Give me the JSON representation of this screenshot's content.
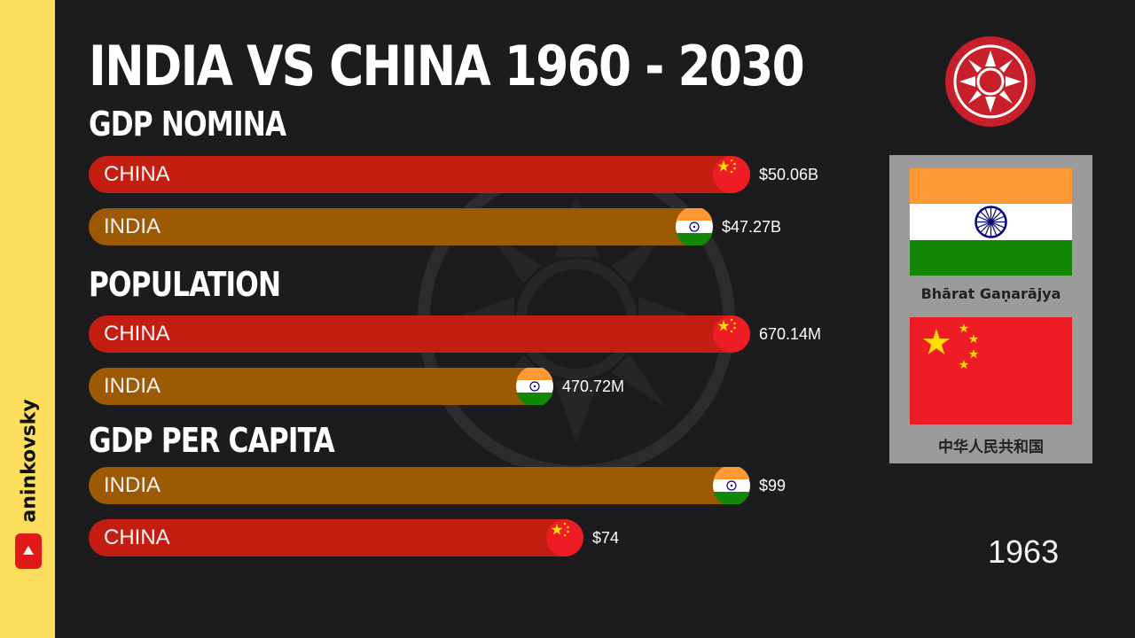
{
  "channel": {
    "name": "aninkovsky",
    "icon": "youtube-icon"
  },
  "title": "INDIA VS CHINA 1960 - 2030",
  "year": "1963",
  "colors": {
    "china_bar": "#c41e12",
    "india_bar": "#9c5a05",
    "side_strip": "#fddd5c",
    "background": "#1c1c1e"
  },
  "flags_panel": {
    "india_caption": "Bhārat Gaṇarājya",
    "china_caption": "中华人民共和国"
  },
  "chart_data": [
    {
      "type": "bar",
      "title": "GDP NOMINA",
      "orientation": "horizontal",
      "categories": [
        "CHINA",
        "INDIA"
      ],
      "values": [
        50.06,
        47.27
      ],
      "unit": "B USD",
      "value_labels": [
        "$50.06B",
        "$47.27B"
      ],
      "colors": [
        "#c41e12",
        "#9c5a05"
      ],
      "flags": [
        "china-flag-icon",
        "india-flag-icon"
      ]
    },
    {
      "type": "bar",
      "title": "POPULATION",
      "orientation": "horizontal",
      "categories": [
        "CHINA",
        "INDIA"
      ],
      "values": [
        670.14,
        470.72
      ],
      "unit": "M",
      "value_labels": [
        "670.14M",
        "470.72M"
      ],
      "colors": [
        "#c41e12",
        "#9c5a05"
      ],
      "flags": [
        "china-flag-icon",
        "india-flag-icon"
      ]
    },
    {
      "type": "bar",
      "title": "GDP PER CAPITA",
      "orientation": "horizontal",
      "categories": [
        "INDIA",
        "CHINA"
      ],
      "values": [
        99,
        74
      ],
      "unit": "USD",
      "value_labels": [
        "$99",
        "$74"
      ],
      "colors": [
        "#9c5a05",
        "#c41e12"
      ],
      "flags": [
        "india-flag-icon",
        "china-flag-icon"
      ]
    }
  ]
}
